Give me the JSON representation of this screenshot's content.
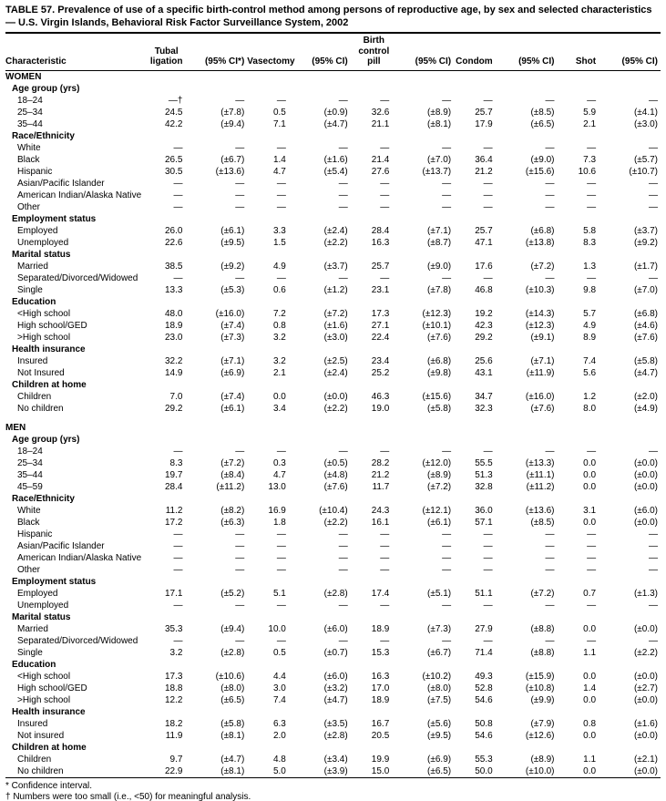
{
  "title": "TABLE 57. Prevalence of use of a specific birth-control method among persons of reproductive age, by sex and selected characteristics — U.S. Virgin Islands, Behavioral Risk Factor Surveillance System, 2002",
  "table": {
    "columns": [
      "Characteristic",
      "Tubal\nligation",
      "(95% CI*)",
      "Vasectomy",
      "(95% CI)",
      "Birth\ncontrol\npill",
      "(95% CI)",
      "Condom",
      "(95% CI)",
      "Shot",
      "(95% CI)"
    ],
    "sections": [
      {
        "label": "WOMEN",
        "groups": [
          {
            "label": "Age group (yrs)",
            "rows": [
              {
                "label": "18–24",
                "values": [
                  "—†",
                  "—",
                  "—",
                  "—",
                  "—",
                  "—",
                  "—",
                  "—",
                  "—",
                  "—"
                ]
              },
              {
                "label": "25–34",
                "values": [
                  "24.5",
                  "(±7.8)",
                  "0.5",
                  "(±0.9)",
                  "32.6",
                  "(±8.9)",
                  "25.7",
                  "(±8.5)",
                  "5.9",
                  "(±4.1)"
                ]
              },
              {
                "label": "35–44",
                "values": [
                  "42.2",
                  "(±9.4)",
                  "7.1",
                  "(±4.7)",
                  "21.1",
                  "(±8.1)",
                  "17.9",
                  "(±6.5)",
                  "2.1",
                  "(±3.0)"
                ]
              }
            ]
          },
          {
            "label": "Race/Ethnicity",
            "rows": [
              {
                "label": "White",
                "values": [
                  "—",
                  "—",
                  "—",
                  "—",
                  "—",
                  "—",
                  "—",
                  "—",
                  "—",
                  "—"
                ]
              },
              {
                "label": "Black",
                "values": [
                  "26.5",
                  "(±6.7)",
                  "1.4",
                  "(±1.6)",
                  "21.4",
                  "(±7.0)",
                  "36.4",
                  "(±9.0)",
                  "7.3",
                  "(±5.7)"
                ]
              },
              {
                "label": "Hispanic",
                "values": [
                  "30.5",
                  "(±13.6)",
                  "4.7",
                  "(±5.4)",
                  "27.6",
                  "(±13.7)",
                  "21.2",
                  "(±15.6)",
                  "10.6",
                  "(±10.7)"
                ]
              },
              {
                "label": "Asian/Pacific Islander",
                "values": [
                  "—",
                  "—",
                  "—",
                  "—",
                  "—",
                  "—",
                  "—",
                  "—",
                  "—",
                  "—"
                ]
              },
              {
                "label": "American Indian/Alaska Native",
                "values": [
                  "—",
                  "—",
                  "—",
                  "—",
                  "—",
                  "—",
                  "—",
                  "—",
                  "—",
                  "—"
                ]
              },
              {
                "label": "Other",
                "values": [
                  "—",
                  "—",
                  "—",
                  "—",
                  "—",
                  "—",
                  "—",
                  "—",
                  "—",
                  "—"
                ]
              }
            ]
          },
          {
            "label": "Employment status",
            "rows": [
              {
                "label": "Employed",
                "values": [
                  "26.0",
                  "(±6.1)",
                  "3.3",
                  "(±2.4)",
                  "28.4",
                  "(±7.1)",
                  "25.7",
                  "(±6.8)",
                  "5.8",
                  "(±3.7)"
                ]
              },
              {
                "label": "Unemployed",
                "values": [
                  "22.6",
                  "(±9.5)",
                  "1.5",
                  "(±2.2)",
                  "16.3",
                  "(±8.7)",
                  "47.1",
                  "(±13.8)",
                  "8.3",
                  "(±9.2)"
                ]
              }
            ]
          },
          {
            "label": "Marital status",
            "rows": [
              {
                "label": "Married",
                "values": [
                  "38.5",
                  "(±9.2)",
                  "4.9",
                  "(±3.7)",
                  "25.7",
                  "(±9.0)",
                  "17.6",
                  "(±7.2)",
                  "1.3",
                  "(±1.7)"
                ]
              },
              {
                "label": "Separated/Divorced/Widowed",
                "values": [
                  "—",
                  "—",
                  "—",
                  "—",
                  "—",
                  "—",
                  "—",
                  "—",
                  "—",
                  "—"
                ]
              },
              {
                "label": "Single",
                "values": [
                  "13.3",
                  "(±5.3)",
                  "0.6",
                  "(±1.2)",
                  "23.1",
                  "(±7.8)",
                  "46.8",
                  "(±10.3)",
                  "9.8",
                  "(±7.0)"
                ]
              }
            ]
          },
          {
            "label": "Education",
            "rows": [
              {
                "label": "<High school",
                "values": [
                  "48.0",
                  "(±16.0)",
                  "7.2",
                  "(±7.2)",
                  "17.3",
                  "(±12.3)",
                  "19.2",
                  "(±14.3)",
                  "5.7",
                  "(±6.8)"
                ]
              },
              {
                "label": "High school/GED",
                "values": [
                  "18.9",
                  "(±7.4)",
                  "0.8",
                  "(±1.6)",
                  "27.1",
                  "(±10.1)",
                  "42.3",
                  "(±12.3)",
                  "4.9",
                  "(±4.6)"
                ]
              },
              {
                "label": ">High school",
                "values": [
                  "23.0",
                  "(±7.3)",
                  "3.2",
                  "(±3.0)",
                  "22.4",
                  "(±7.6)",
                  "29.2",
                  "(±9.1)",
                  "8.9",
                  "(±7.6)"
                ]
              }
            ]
          },
          {
            "label": "Health insurance",
            "rows": [
              {
                "label": "Insured",
                "values": [
                  "32.2",
                  "(±7.1)",
                  "3.2",
                  "(±2.5)",
                  "23.4",
                  "(±6.8)",
                  "25.6",
                  "(±7.1)",
                  "7.4",
                  "(±5.8)"
                ]
              },
              {
                "label": "Not Insured",
                "values": [
                  "14.9",
                  "(±6.9)",
                  "2.1",
                  "(±2.4)",
                  "25.2",
                  "(±9.8)",
                  "43.1",
                  "(±11.9)",
                  "5.6",
                  "(±4.7)"
                ]
              }
            ]
          },
          {
            "label": "Children at home",
            "rows": [
              {
                "label": "Children",
                "values": [
                  "7.0",
                  "(±7.4)",
                  "0.0",
                  "(±0.0)",
                  "46.3",
                  "(±15.6)",
                  "34.7",
                  "(±16.0)",
                  "1.2",
                  "(±2.0)"
                ]
              },
              {
                "label": "No children",
                "values": [
                  "29.2",
                  "(±6.1)",
                  "3.4",
                  "(±2.2)",
                  "19.0",
                  "(±5.8)",
                  "32.3",
                  "(±7.6)",
                  "8.0",
                  "(±4.9)"
                ]
              }
            ]
          }
        ]
      },
      {
        "label": "MEN",
        "groups": [
          {
            "label": "Age group (yrs)",
            "rows": [
              {
                "label": "18–24",
                "values": [
                  "—",
                  "—",
                  "—",
                  "—",
                  "—",
                  "—",
                  "—",
                  "—",
                  "—",
                  "—"
                ]
              },
              {
                "label": "25–34",
                "values": [
                  "8.3",
                  "(±7.2)",
                  "0.3",
                  "(±0.5)",
                  "28.2",
                  "(±12.0)",
                  "55.5",
                  "(±13.3)",
                  "0.0",
                  "(±0.0)"
                ]
              },
              {
                "label": "35–44",
                "values": [
                  "19.7",
                  "(±8.4)",
                  "4.7",
                  "(±4.8)",
                  "21.2",
                  "(±8.9)",
                  "51.3",
                  "(±11.1)",
                  "0.0",
                  "(±0.0)"
                ]
              },
              {
                "label": "45–59",
                "values": [
                  "28.4",
                  "(±11.2)",
                  "13.0",
                  "(±7.6)",
                  "11.7",
                  "(±7.2)",
                  "32.8",
                  "(±11.2)",
                  "0.0",
                  "(±0.0)"
                ]
              }
            ]
          },
          {
            "label": "Race/Ethnicity",
            "rows": [
              {
                "label": "White",
                "values": [
                  "11.2",
                  "(±8.2)",
                  "16.9",
                  "(±10.4)",
                  "24.3",
                  "(±12.1)",
                  "36.0",
                  "(±13.6)",
                  "3.1",
                  "(±6.0)"
                ]
              },
              {
                "label": "Black",
                "values": [
                  "17.2",
                  "(±6.3)",
                  "1.8",
                  "(±2.2)",
                  "16.1",
                  "(±6.1)",
                  "57.1",
                  "(±8.5)",
                  "0.0",
                  "(±0.0)"
                ]
              },
              {
                "label": "Hispanic",
                "values": [
                  "—",
                  "—",
                  "—",
                  "—",
                  "—",
                  "—",
                  "—",
                  "—",
                  "—",
                  "—"
                ]
              },
              {
                "label": "Asian/Pacific Islander",
                "values": [
                  "—",
                  "—",
                  "—",
                  "—",
                  "—",
                  "—",
                  "—",
                  "—",
                  "—",
                  "—"
                ]
              },
              {
                "label": "American Indian/Alaska Native",
                "values": [
                  "—",
                  "—",
                  "—",
                  "—",
                  "—",
                  "—",
                  "—",
                  "—",
                  "—",
                  "—"
                ]
              },
              {
                "label": "Other",
                "values": [
                  "—",
                  "—",
                  "—",
                  "—",
                  "—",
                  "—",
                  "—",
                  "—",
                  "—",
                  "—"
                ]
              }
            ]
          },
          {
            "label": "Employment status",
            "rows": [
              {
                "label": "Employed",
                "values": [
                  "17.1",
                  "(±5.2)",
                  "5.1",
                  "(±2.8)",
                  "17.4",
                  "(±5.1)",
                  "51.1",
                  "(±7.2)",
                  "0.7",
                  "(±1.3)"
                ]
              },
              {
                "label": "Unemployed",
                "values": [
                  "—",
                  "—",
                  "—",
                  "—",
                  "—",
                  "—",
                  "—",
                  "—",
                  "—",
                  "—"
                ]
              }
            ]
          },
          {
            "label": "Marital status",
            "rows": [
              {
                "label": "Married",
                "values": [
                  "35.3",
                  "(±9.4)",
                  "10.0",
                  "(±6.0)",
                  "18.9",
                  "(±7.3)",
                  "27.9",
                  "(±8.8)",
                  "0.0",
                  "(±0.0)"
                ]
              },
              {
                "label": "Separated/Divorced/Widowed",
                "values": [
                  "—",
                  "—",
                  "—",
                  "—",
                  "—",
                  "—",
                  "—",
                  "—",
                  "—",
                  "—"
                ]
              },
              {
                "label": "Single",
                "values": [
                  "3.2",
                  "(±2.8)",
                  "0.5",
                  "(±0.7)",
                  "15.3",
                  "(±6.7)",
                  "71.4",
                  "(±8.8)",
                  "1.1",
                  "(±2.2)"
                ]
              }
            ]
          },
          {
            "label": "Education",
            "rows": [
              {
                "label": "<High school",
                "values": [
                  "17.3",
                  "(±10.6)",
                  "4.4",
                  "(±6.0)",
                  "16.3",
                  "(±10.2)",
                  "49.3",
                  "(±15.9)",
                  "0.0",
                  "(±0.0)"
                ]
              },
              {
                "label": "High school/GED",
                "values": [
                  "18.8",
                  "(±8.0)",
                  "3.0",
                  "(±3.2)",
                  "17.0",
                  "(±8.0)",
                  "52.8",
                  "(±10.8)",
                  "1.4",
                  "(±2.7)"
                ]
              },
              {
                "label": ">High school",
                "values": [
                  "12.2",
                  "(±6.5)",
                  "7.4",
                  "(±4.7)",
                  "18.9",
                  "(±7.5)",
                  "54.6",
                  "(±9.9)",
                  "0.0",
                  "(±0.0)"
                ]
              }
            ]
          },
          {
            "label": "Health insurance",
            "rows": [
              {
                "label": "Insured",
                "values": [
                  "18.2",
                  "(±5.8)",
                  "6.3",
                  "(±3.5)",
                  "16.7",
                  "(±5.6)",
                  "50.8",
                  "(±7.9)",
                  "0.8",
                  "(±1.6)"
                ]
              },
              {
                "label": "Not insured",
                "values": [
                  "11.9",
                  "(±8.1)",
                  "2.0",
                  "(±2.8)",
                  "20.5",
                  "(±9.5)",
                  "54.6",
                  "(±12.6)",
                  "0.0",
                  "(±0.0)"
                ]
              }
            ]
          },
          {
            "label": "Children at home",
            "rows": [
              {
                "label": "Children",
                "values": [
                  "9.7",
                  "(±4.7)",
                  "4.8",
                  "(±3.4)",
                  "19.9",
                  "(±6.9)",
                  "55.3",
                  "(±8.9)",
                  "1.1",
                  "(±2.1)"
                ]
              },
              {
                "label": "No children",
                "values": [
                  "22.9",
                  "(±8.1)",
                  "5.0",
                  "(±3.9)",
                  "15.0",
                  "(±6.5)",
                  "50.0",
                  "(±10.0)",
                  "0.0",
                  "(±0.0)"
                ]
              }
            ]
          }
        ]
      }
    ]
  },
  "footnotes": [
    "* Confidence interval.",
    "† Numbers were too small (i.e., <50) for meaningful analysis."
  ]
}
